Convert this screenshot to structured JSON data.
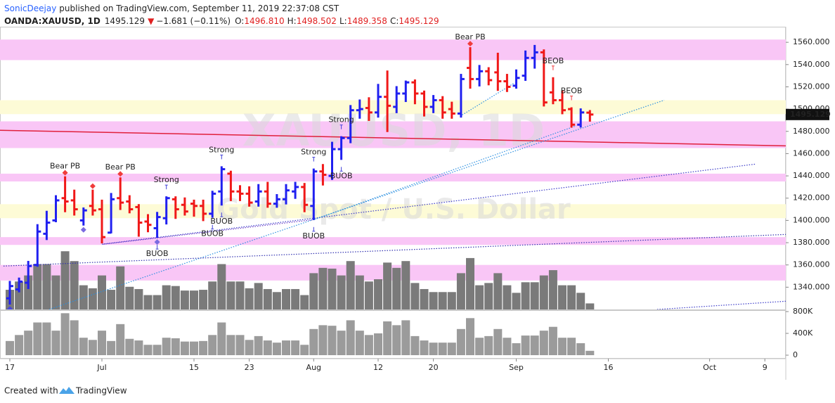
{
  "header": {
    "author": "SonicDeejay",
    "published": "published on TradingView.com, September 11, 2019 22:37:08 CST",
    "symbol": "OANDA:XAUUSD, 1D",
    "change_arrow": "▼",
    "change": "−1.681 (−0.11%)",
    "open_label": "O:",
    "open": "1496.810",
    "high_label": "H:",
    "high": "1498.502",
    "low_label": "L:",
    "low": "1489.358",
    "close_label": "C:",
    "close": "1495.129"
  },
  "footer": {
    "created_with": "Created with",
    "brand": "TradingView"
  },
  "chart_data": {
    "type": "ohlc",
    "watermark": {
      "symbol": "XAUUSD, 1D",
      "description": "Gold Spot / U.S. Dollar"
    },
    "up_color": "#2020f0",
    "down_color": "#f01818",
    "volume_color": "#7a7a7a",
    "volume_pane_color": "#9b9b9b",
    "categories": [
      "17",
      null,
      null,
      null,
      null,
      null,
      null,
      null,
      null,
      null,
      "Jul",
      null,
      null,
      null,
      null,
      null,
      null,
      null,
      null,
      null,
      "15",
      null,
      null,
      null,
      null,
      null,
      "23",
      null,
      null,
      null,
      null,
      null,
      null,
      "Aug",
      null,
      null,
      null,
      null,
      null,
      null,
      "12",
      null,
      null,
      null,
      null,
      null,
      "20",
      null,
      null,
      null,
      null,
      null,
      null,
      null,
      null,
      "Sep",
      null,
      null,
      null,
      null,
      null,
      null,
      null,
      null,
      null,
      "16",
      null,
      null,
      null,
      null,
      null,
      null,
      null,
      null,
      null,
      null,
      "Oct",
      null,
      null,
      null,
      null,
      null,
      "9"
    ],
    "open": [
      1330,
      1338,
      1344,
      1360,
      1388,
      1400,
      1420,
      1418,
      1400,
      1413,
      1410,
      1389,
      1420,
      1417,
      1412,
      1399,
      1393,
      1402,
      1419,
      1414,
      1415,
      1413,
      1406,
      1426,
      1442,
      1426,
      1424,
      1417,
      1426,
      1415,
      1419,
      1426,
      1430,
      1413,
      1444,
      1440,
      1464,
      1474,
      1499,
      1501,
      1497,
      1511,
      1502,
      1514,
      1524,
      1514,
      1502,
      1508,
      1500,
      1496,
      1537,
      1527,
      1534,
      1533,
      1525,
      1521,
      1530,
      1546,
      1551,
      1515,
      1508,
      1500,
      1486,
      1496.81,
      null,
      null,
      null,
      null,
      null,
      null,
      null,
      null,
      null,
      null,
      null,
      null,
      null,
      null,
      null,
      null,
      null,
      null,
      null
    ],
    "high": [
      1345,
      1348,
      1363,
      1396,
      1408,
      1422,
      1439,
      1427,
      1411,
      1427,
      1418,
      1424,
      1438,
      1422,
      1414,
      1405,
      1407,
      1421,
      1421,
      1420,
      1418,
      1418,
      1426,
      1448,
      1444,
      1431,
      1430,
      1432,
      1434,
      1423,
      1432,
      1434,
      1433,
      1446,
      1450,
      1470,
      1475,
      1503,
      1508,
      1510,
      1522,
      1534,
      1520,
      1525,
      1526,
      1516,
      1512,
      1511,
      1506,
      1531,
      1555,
      1539,
      1537,
      1550,
      1531,
      1535,
      1552,
      1557,
      1553,
      1528,
      1516,
      1501,
      1500,
      1498.502,
      null,
      null,
      null,
      null,
      null,
      null,
      null,
      null,
      null,
      null,
      null,
      null,
      null,
      null,
      null,
      null,
      null,
      null,
      null
    ],
    "low": [
      1325,
      1336,
      1339,
      1359,
      1383,
      1399,
      1408,
      1405,
      1396,
      1405,
      1380,
      1389,
      1410,
      1407,
      1386,
      1390,
      1385,
      1397,
      1402,
      1405,
      1404,
      1400,
      1403,
      1414,
      1418,
      1418,
      1413,
      1413,
      1412,
      1412,
      1415,
      1420,
      1408,
      1401,
      1432,
      1437,
      1455,
      1470,
      1492,
      1490,
      1493,
      1480,
      1497,
      1507,
      1505,
      1494,
      1497,
      1492,
      1492,
      1493,
      1519,
      1521,
      1522,
      1517,
      1516,
      1519,
      1526,
      1537,
      1503,
      1505,
      1496,
      1484,
      1484,
      1489.358,
      null,
      null,
      null,
      null,
      null,
      null,
      null,
      null,
      null,
      null,
      null,
      null,
      null,
      null,
      null,
      null,
      null,
      null,
      null
    ],
    "close": [
      1341,
      1345,
      1359,
      1390,
      1398,
      1418,
      1417,
      1410,
      1409,
      1409,
      1385,
      1419,
      1416,
      1410,
      1398,
      1396,
      1403,
      1420,
      1410,
      1408,
      1413,
      1406,
      1424,
      1446,
      1426,
      1424,
      1416,
      1426,
      1415,
      1419,
      1427,
      1430,
      1414,
      1444,
      1441,
      1464,
      1474,
      1499,
      1500,
      1497,
      1511,
      1503,
      1514,
      1524,
      1514,
      1502,
      1508,
      1497,
      1496,
      1527,
      1527,
      1534,
      1526,
      1525,
      1520,
      1528,
      1546,
      1551,
      1506,
      1508,
      1499,
      1486,
      1497,
      1495.129,
      null,
      null,
      null,
      null,
      null,
      null,
      null,
      null,
      null,
      null,
      null,
      null,
      null,
      null,
      null,
      null,
      null,
      null,
      null
    ],
    "volume": [
      260000,
      370000,
      450000,
      600000,
      600000,
      450000,
      770000,
      640000,
      320000,
      280000,
      450000,
      260000,
      570000,
      300000,
      270000,
      190000,
      190000,
      320000,
      310000,
      250000,
      250000,
      260000,
      370000,
      600000,
      370000,
      370000,
      280000,
      350000,
      270000,
      230000,
      270000,
      270000,
      190000,
      480000,
      550000,
      540000,
      450000,
      640000,
      450000,
      370000,
      400000,
      620000,
      550000,
      640000,
      350000,
      270000,
      230000,
      230000,
      230000,
      480000,
      680000,
      320000,
      350000,
      480000,
      320000,
      220000,
      360000,
      360000,
      450000,
      520000,
      320000,
      320000,
      220000,
      80000,
      null,
      null,
      null,
      null,
      null,
      null,
      null,
      null,
      null,
      null,
      null,
      null,
      null,
      null,
      null,
      null,
      null,
      null,
      null
    ],
    "ylim": [
      1320,
      1574
    ],
    "yticks": [
      {
        "value": 1340,
        "label": "1340.000"
      },
      {
        "value": 1360,
        "label": "1360.000"
      },
      {
        "value": 1380,
        "label": "1380.000"
      },
      {
        "value": 1400,
        "label": "1400.000"
      },
      {
        "value": 1420,
        "label": "1420.000"
      },
      {
        "value": 1440,
        "label": "1440.000"
      },
      {
        "value": 1460,
        "label": "1460.000"
      },
      {
        "value": 1480,
        "label": "1480.000"
      },
      {
        "value": 1500,
        "label": "1500.000"
      },
      {
        "value": 1520,
        "label": "1520.000"
      },
      {
        "value": 1540,
        "label": "1540.000"
      },
      {
        "value": 1560,
        "label": "1560.000"
      }
    ],
    "volume_ylim": [
      0,
      800000
    ],
    "volume_ticks": [
      0,
      {
        "value": 400000,
        "label": "400K"
      },
      {
        "value": 800000,
        "label": "800K"
      }
    ],
    "grid": false,
    "zones": [
      {
        "from": 1544,
        "to": 1562.5,
        "color": "#f9c6f6"
      },
      {
        "from": 1495.5,
        "to": 1508,
        "color": "#fdfbd6"
      },
      {
        "from": 1465,
        "to": 1489,
        "color": "#f9c6f6"
      },
      {
        "from": 1435,
        "to": 1442,
        "color": "#f9c6f6"
      },
      {
        "from": 1402,
        "to": 1414.6,
        "color": "#fdfbd6"
      },
      {
        "from": 1378,
        "to": 1385,
        "color": "#f9c6f6"
      },
      {
        "from": 1346,
        "to": 1360,
        "color": "#f9c6f6"
      }
    ],
    "lines": [
      {
        "from": [
          -1.07,
          1481
        ],
        "to": [
          84.3,
          1467
        ],
        "color": "#e0203c",
        "style": "solid"
      },
      {
        "from": [
          4.27,
          1320
        ],
        "to": [
          71.07,
          1508
        ],
        "color": "#2a8fe0",
        "style": "dotted"
      },
      {
        "from": [
          10,
          1378.6
        ],
        "to": [
          81,
          1450.6
        ],
        "color": "#3a3ac8",
        "style": "dotted"
      },
      {
        "from": [
          -0.69,
          1359
        ],
        "to": [
          84.3,
          1387.4
        ],
        "color": "#3030b0",
        "style": "dotted"
      },
      {
        "from": [
          33.05,
          1400.7
        ],
        "to": [
          61.5,
          1485
        ],
        "color": "#2a8fe0",
        "style": "dotted"
      },
      {
        "from": [
          48.9,
          1493.6
        ],
        "to": [
          54.7,
          1523
        ],
        "color": "#2a8fe0",
        "style": "dotted"
      },
      {
        "from": [
          10.15,
          1378.6
        ],
        "to": [
          33.05,
          1400.7
        ],
        "color": "#6a3ac8",
        "style": "dotted"
      },
      {
        "from": [
          70.3,
          1320
        ],
        "to": [
          84.3,
          1327.4
        ],
        "color": "#3a3ac8",
        "style": "dotted"
      }
    ],
    "annotations": [
      {
        "text": "Bear PB",
        "index": 6,
        "at": "high",
        "color": "#f03c3c",
        "marker": true
      },
      {
        "text": "Bear PB",
        "index": 12,
        "at": "high",
        "color": "#f03c3c",
        "marker": true
      },
      {
        "text": "Bear PB",
        "index": 50,
        "at": "high",
        "color": "#f03c3c",
        "marker": true
      },
      {
        "text": "Strong",
        "index": 17,
        "at": "high",
        "color": "#4040d8",
        "marker": false
      },
      {
        "text": "Strong",
        "index": 23,
        "at": "high",
        "color": "#4040d8",
        "marker": false
      },
      {
        "text": "Strong",
        "index": 33,
        "at": "high",
        "color": "#4040d8",
        "marker": false
      },
      {
        "text": "Strong",
        "index": 36,
        "at": "high",
        "color": "#4040d8",
        "marker": false
      },
      {
        "text": "BUOB",
        "index": 16,
        "at": "low",
        "color": "#4040d8",
        "marker": false
      },
      {
        "text": "BUOB",
        "index": 22,
        "at": "low",
        "color": "#4040d8",
        "marker": false
      },
      {
        "text": "BUOB",
        "index": 23,
        "at": "low",
        "color": "#4040d8",
        "marker": false
      },
      {
        "text": "BUOB",
        "index": 33,
        "at": "low",
        "color": "#4040d8",
        "marker": false
      },
      {
        "text": "BUOB",
        "index": 36,
        "at": "low",
        "color": "#4040d8",
        "marker": false
      },
      {
        "text": "BEOB",
        "index": 59,
        "at": "high",
        "color": "#f03c3c",
        "marker": false
      },
      {
        "text": "BEOB",
        "index": 61,
        "at": "high",
        "color": "#f03c3c",
        "marker": false
      }
    ],
    "markers": [
      {
        "index": 0,
        "at": "low",
        "color": "#4a4ad8"
      },
      {
        "index": 8,
        "at": "low",
        "color": "#7a6ae0"
      },
      {
        "index": 9,
        "at": "high",
        "color": "#f03c3c"
      },
      {
        "index": 16,
        "at": "low",
        "color": "#7a6ae0"
      }
    ]
  }
}
